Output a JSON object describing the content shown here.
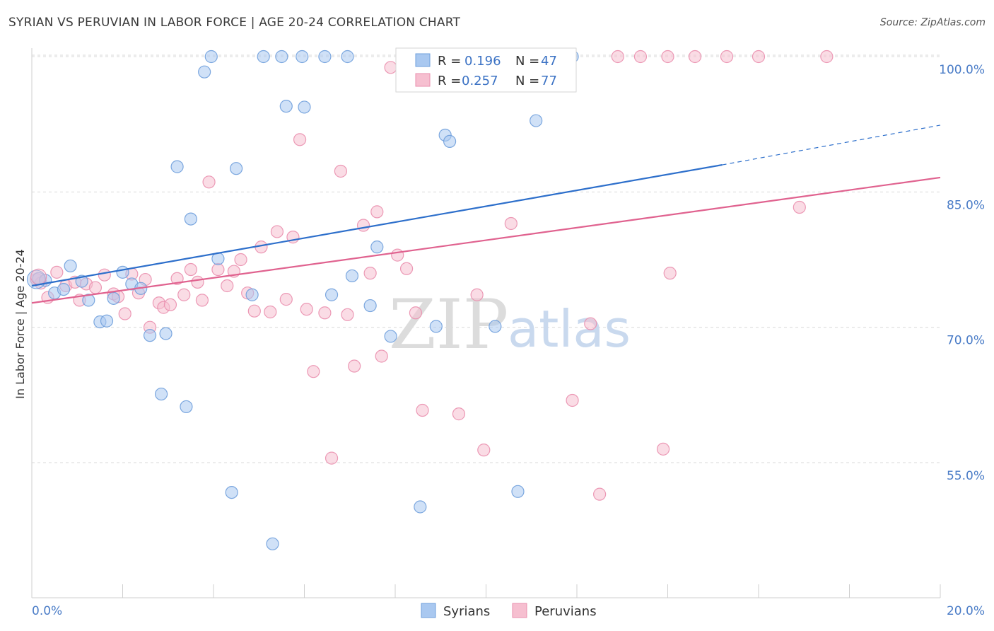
{
  "header": {
    "title": "SYRIAN VS PERUVIAN IN LABOR FORCE | AGE 20-24 CORRELATION CHART",
    "source": "Source: ZipAtlas.com"
  },
  "watermark": {
    "zip": "ZIP",
    "atlas": "atlas"
  },
  "legend_top": {
    "rows": [
      {
        "r_label": "R = ",
        "r_value": "0.196",
        "n_label": "N = ",
        "n_value": "47"
      },
      {
        "r_label": "R = ",
        "r_value": "0.257",
        "n_label": "N = ",
        "n_value": "77"
      }
    ]
  },
  "legend_bottom": {
    "items": [
      "Syrians",
      "Peruvians"
    ]
  },
  "colors": {
    "syrians_fill": "#a9c8f0",
    "syrians_stroke": "#6f9fdc",
    "syrians_line": "#2d6fcb",
    "peruvians_fill": "#f6bfd0",
    "peruvians_stroke": "#ea8fae",
    "peruvians_line": "#e0628f",
    "tick": "#4a7cc7",
    "grid": "#d9d9d9"
  },
  "chart_data": {
    "type": "scatter",
    "title": "SYRIAN VS PERUVIAN IN LABOR FORCE | AGE 20-24 CORRELATION CHART",
    "xlabel": "",
    "ylabel": "In Labor Force | Age 20-24",
    "xlim": [
      0,
      20
    ],
    "ylim": [
      40,
      101
    ],
    "x_tick_labels": [
      "0.0%",
      "20.0%"
    ],
    "y_ticks": [
      55,
      70,
      85,
      100
    ],
    "y_tick_labels": [
      "55.0%",
      "70.0%",
      "85.0%",
      "100.0%"
    ],
    "grid": true,
    "legend_position": "top-center",
    "series": [
      {
        "name": "Syrians",
        "R": 0.196,
        "N": 47,
        "trend": {
          "x0": 0,
          "y0": 74.6,
          "x1": 15.2,
          "y1": 88.0,
          "dash_to_x": 20,
          "dash_to_y": 92.4
        },
        "points": [
          [
            0.15,
            75.4
          ],
          [
            0.3,
            75.2
          ],
          [
            0.5,
            73.8
          ],
          [
            0.7,
            74.2
          ],
          [
            0.85,
            76.8
          ],
          [
            1.1,
            75.1
          ],
          [
            1.25,
            73.0
          ],
          [
            1.5,
            70.6
          ],
          [
            1.65,
            70.7
          ],
          [
            1.8,
            73.2
          ],
          [
            2.0,
            76.1
          ],
          [
            2.2,
            74.8
          ],
          [
            2.4,
            74.3
          ],
          [
            2.6,
            69.1
          ],
          [
            2.85,
            62.6
          ],
          [
            2.95,
            69.3
          ],
          [
            3.2,
            87.8
          ],
          [
            3.4,
            61.2
          ],
          [
            3.5,
            82.0
          ],
          [
            3.8,
            98.3
          ],
          [
            3.95,
            100.0
          ],
          [
            4.1,
            77.6
          ],
          [
            4.4,
            51.7
          ],
          [
            4.5,
            87.6
          ],
          [
            4.85,
            73.6
          ],
          [
            5.1,
            100.0
          ],
          [
            5.3,
            46.0
          ],
          [
            5.5,
            100.0
          ],
          [
            5.6,
            94.5
          ],
          [
            5.95,
            100.0
          ],
          [
            6.0,
            94.4
          ],
          [
            6.45,
            100.0
          ],
          [
            6.6,
            73.6
          ],
          [
            6.95,
            100.0
          ],
          [
            7.05,
            75.7
          ],
          [
            7.45,
            72.4
          ],
          [
            7.6,
            78.9
          ],
          [
            7.9,
            69.0
          ],
          [
            8.55,
            50.1
          ],
          [
            8.9,
            70.1
          ],
          [
            9.1,
            91.3
          ],
          [
            9.2,
            90.6
          ],
          [
            10.2,
            70.1
          ],
          [
            10.7,
            51.8
          ],
          [
            11.1,
            92.9
          ],
          [
            11.3,
            100.0
          ],
          [
            11.9,
            100.0
          ]
        ]
      },
      {
        "name": "Peruvians",
        "R": 0.257,
        "N": 77,
        "trend": {
          "x0": 0,
          "y0": 72.7,
          "x1": 20,
          "y1": 86.6
        },
        "points": [
          [
            0.1,
            75.3
          ],
          [
            0.2,
            74.9
          ],
          [
            0.35,
            73.3
          ],
          [
            0.55,
            76.1
          ],
          [
            0.75,
            74.6
          ],
          [
            0.95,
            75.0
          ],
          [
            1.05,
            73.0
          ],
          [
            1.2,
            74.8
          ],
          [
            1.4,
            74.4
          ],
          [
            1.6,
            75.8
          ],
          [
            1.8,
            73.7
          ],
          [
            1.9,
            73.4
          ],
          [
            2.05,
            71.5
          ],
          [
            2.2,
            75.9
          ],
          [
            2.35,
            73.8
          ],
          [
            2.5,
            75.3
          ],
          [
            2.6,
            70.0
          ],
          [
            2.8,
            72.7
          ],
          [
            2.9,
            72.2
          ],
          [
            3.05,
            72.5
          ],
          [
            3.2,
            75.4
          ],
          [
            3.35,
            73.6
          ],
          [
            3.5,
            76.4
          ],
          [
            3.65,
            75.0
          ],
          [
            3.75,
            73.0
          ],
          [
            3.9,
            86.1
          ],
          [
            4.1,
            76.4
          ],
          [
            4.3,
            74.6
          ],
          [
            4.45,
            76.2
          ],
          [
            4.6,
            77.5
          ],
          [
            4.75,
            73.8
          ],
          [
            4.9,
            71.8
          ],
          [
            5.05,
            78.9
          ],
          [
            5.25,
            71.7
          ],
          [
            5.4,
            80.6
          ],
          [
            5.6,
            73.1
          ],
          [
            5.75,
            80.0
          ],
          [
            5.9,
            90.8
          ],
          [
            6.05,
            72.0
          ],
          [
            6.2,
            65.1
          ],
          [
            6.45,
            71.6
          ],
          [
            6.6,
            55.5
          ],
          [
            6.8,
            87.3
          ],
          [
            6.95,
            71.4
          ],
          [
            7.1,
            65.7
          ],
          [
            7.3,
            81.3
          ],
          [
            7.45,
            76.0
          ],
          [
            7.6,
            82.8
          ],
          [
            7.7,
            66.8
          ],
          [
            7.9,
            98.8
          ],
          [
            8.05,
            78.0
          ],
          [
            8.25,
            76.5
          ],
          [
            8.45,
            71.6
          ],
          [
            8.6,
            60.8
          ],
          [
            8.8,
            100.0
          ],
          [
            9.2,
            100.0
          ],
          [
            9.4,
            60.4
          ],
          [
            9.7,
            100.0
          ],
          [
            9.8,
            73.6
          ],
          [
            9.95,
            56.4
          ],
          [
            10.2,
            100.0
          ],
          [
            10.55,
            81.5
          ],
          [
            11.2,
            100.0
          ],
          [
            11.6,
            100.0
          ],
          [
            11.9,
            61.9
          ],
          [
            12.3,
            70.4
          ],
          [
            12.5,
            51.5
          ],
          [
            12.9,
            100.0
          ],
          [
            13.4,
            100.0
          ],
          [
            13.9,
            56.5
          ],
          [
            14.0,
            100.0
          ],
          [
            14.05,
            76.0
          ],
          [
            14.6,
            100.0
          ],
          [
            15.3,
            100.0
          ],
          [
            16.0,
            100.0
          ],
          [
            16.9,
            83.3
          ],
          [
            17.5,
            100.0
          ]
        ]
      }
    ]
  }
}
